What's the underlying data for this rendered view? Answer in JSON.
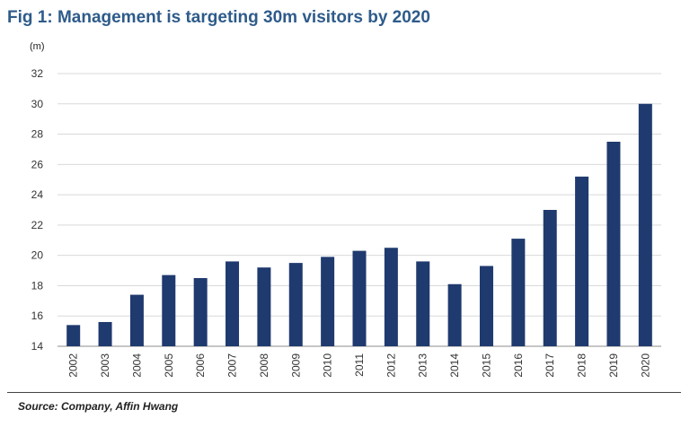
{
  "title": "Fig 1: Management is targeting 30m visitors by 2020",
  "unit_label": "(m)",
  "source": "Source: Company, Affin Hwang",
  "colors": {
    "bar": "#1f3a6e",
    "title": "#2e5b8a",
    "grid": "#d9d9d9"
  },
  "chart_data": {
    "type": "bar",
    "categories": [
      "2002",
      "2003",
      "2004",
      "2005",
      "2006",
      "2007",
      "2008",
      "2009",
      "2010",
      "2011",
      "2012",
      "2013",
      "2014",
      "2015",
      "2016",
      "2017",
      "2018",
      "2019",
      "2020"
    ],
    "values": [
      15.4,
      15.6,
      17.4,
      18.7,
      18.5,
      19.6,
      19.2,
      19.5,
      19.9,
      20.3,
      20.5,
      19.6,
      18.1,
      19.3,
      21.1,
      23.0,
      25.2,
      27.5,
      30.0
    ],
    "ylim": [
      14,
      32
    ],
    "yticks": [
      14,
      16,
      18,
      20,
      22,
      24,
      26,
      28,
      30,
      32
    ],
    "ylabel": "(m)",
    "xlabel": "",
    "grid": true,
    "legend": "none"
  }
}
